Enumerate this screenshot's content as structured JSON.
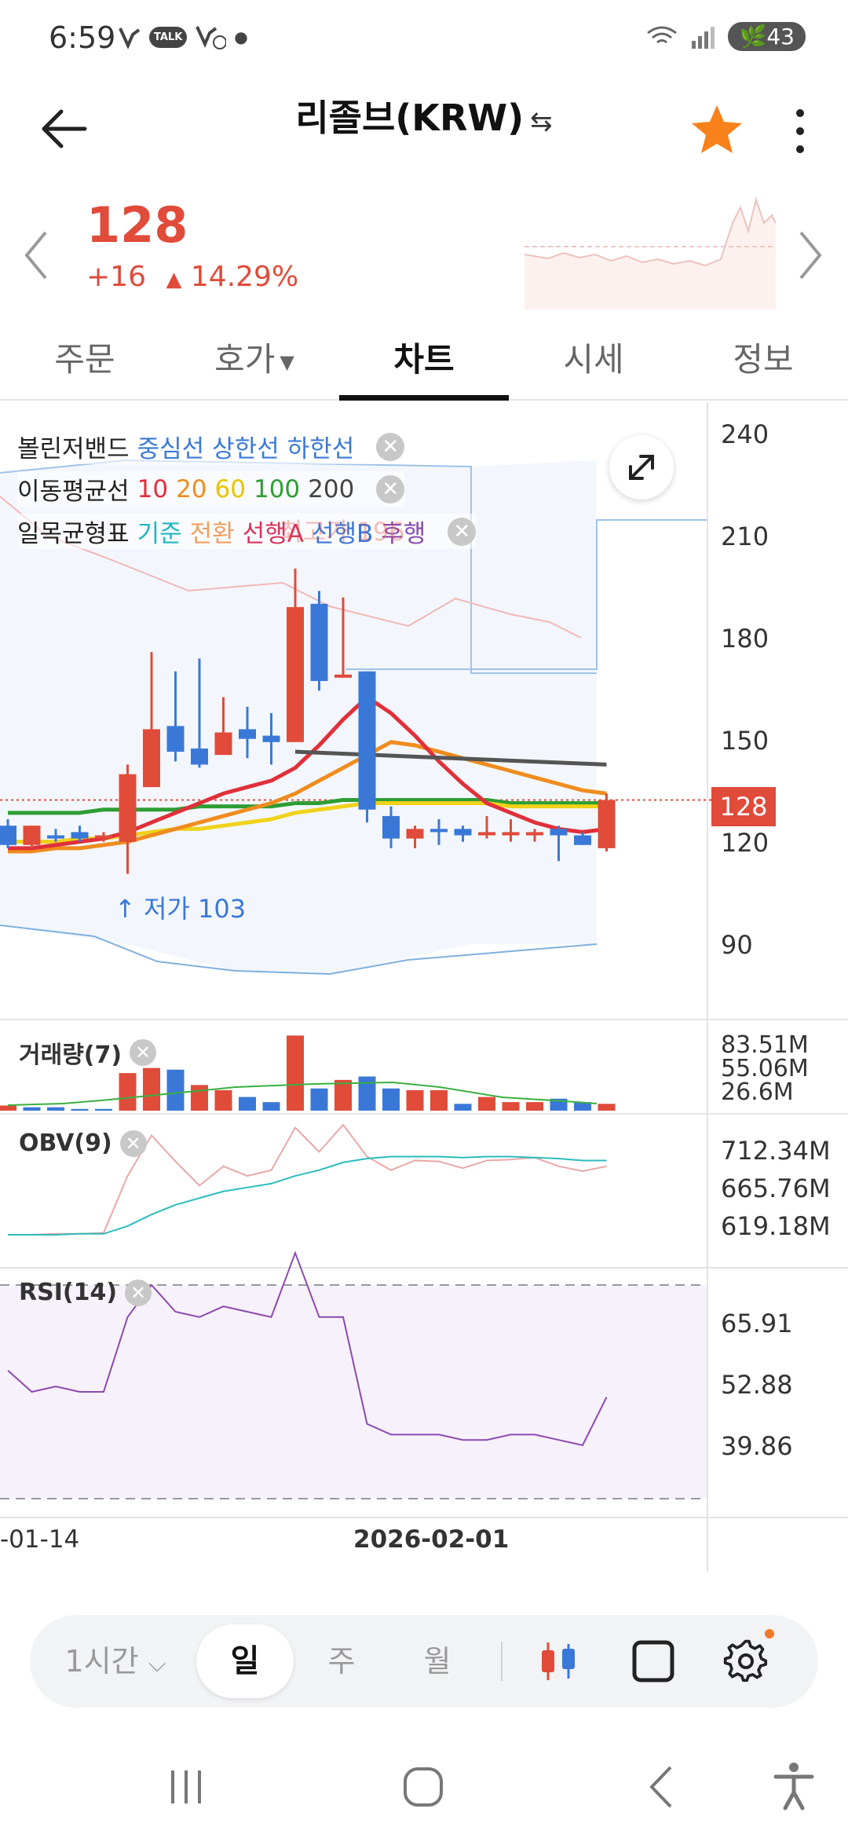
{
  "status": {
    "time": "6:59",
    "battery": "43",
    "talk": "TALK"
  },
  "header": {
    "title": "리졸브(KRW)",
    "swap_icon": "⇆",
    "star_color": "#f7821b"
  },
  "price": {
    "current": "128",
    "change": "+16",
    "change_arrow": "▲",
    "change_percent": "14.29%",
    "color": "#e04b3a"
  },
  "tabs": [
    {
      "label": "주문"
    },
    {
      "label": "호가",
      "caret": "▼"
    },
    {
      "label": "차트",
      "active": true
    },
    {
      "label": "시세"
    },
    {
      "label": "정보"
    }
  ],
  "chart": {
    "legend_bollinger": {
      "name": "볼린저밴드",
      "mid": "중심선",
      "upper": "상한선",
      "lower": "하한선"
    },
    "legend_ma": {
      "name": "이동평균선",
      "p10": "10",
      "p20": "20",
      "p60": "60",
      "p100": "100",
      "p200": "200"
    },
    "legend_ichimoku": {
      "name": "일목균형표",
      "base": "기준",
      "conv": "전환",
      "spanA": "선행A",
      "spanB": "선행B",
      "lag": "후행"
    },
    "high_watermark": "최고가 196",
    "low_label": "저가 103",
    "price_tag": "128",
    "close_glyph": "✕",
    "y_axis": [
      "240",
      "210",
      "180",
      "150",
      "120",
      "90"
    ],
    "volume": {
      "title": "거래량(7)",
      "axis": [
        "83.51M",
        "55.06M",
        "26.6M"
      ]
    },
    "obv": {
      "title": "OBV(9)",
      "axis": [
        "712.34M",
        "665.76M",
        "619.18M"
      ]
    },
    "rsi": {
      "title": "RSI(14)",
      "axis": [
        "65.91",
        "52.88",
        "39.86"
      ]
    },
    "dates": [
      "-01-14",
      "2026-02-01"
    ]
  },
  "chart_data": {
    "type": "candlestick",
    "ylim": [
      80,
      245
    ],
    "candles": [
      {
        "o": 120,
        "h": 122,
        "l": 113,
        "c": 114
      },
      {
        "o": 114,
        "h": 120,
        "l": 113,
        "c": 120
      },
      {
        "o": 117,
        "h": 119,
        "l": 115,
        "c": 116
      },
      {
        "o": 118,
        "h": 120,
        "l": 115,
        "c": 116
      },
      {
        "o": 116,
        "h": 118,
        "l": 115,
        "c": 117
      },
      {
        "o": 115,
        "h": 139,
        "l": 105,
        "c": 136
      },
      {
        "o": 132,
        "h": 174,
        "l": 132,
        "c": 150
      },
      {
        "o": 151,
        "h": 168,
        "l": 140,
        "c": 143
      },
      {
        "o": 144,
        "h": 172,
        "l": 138,
        "c": 139
      },
      {
        "o": 142,
        "h": 160,
        "l": 142,
        "c": 149
      },
      {
        "o": 150,
        "h": 157,
        "l": 141,
        "c": 147
      },
      {
        "o": 148,
        "h": 155,
        "l": 139,
        "c": 146
      },
      {
        "o": 146,
        "h": 200,
        "l": 146,
        "c": 188
      },
      {
        "o": 189,
        "h": 193,
        "l": 162,
        "c": 165
      },
      {
        "o": 167,
        "h": 191,
        "l": 166,
        "c": 167
      },
      {
        "o": 168,
        "h": 168,
        "l": 121,
        "c": 125
      },
      {
        "o": 123,
        "h": 126,
        "l": 113,
        "c": 116
      },
      {
        "o": 116,
        "h": 120,
        "l": 113,
        "c": 119
      },
      {
        "o": 119,
        "h": 122,
        "l": 114,
        "c": 118
      },
      {
        "o": 119,
        "h": 120,
        "l": 115,
        "c": 117
      },
      {
        "o": 117,
        "h": 123,
        "l": 116,
        "c": 118
      },
      {
        "o": 117,
        "h": 122,
        "l": 115,
        "c": 118
      },
      {
        "o": 117,
        "h": 119,
        "l": 115,
        "c": 118
      },
      {
        "o": 119,
        "h": 120,
        "l": 109,
        "c": 117
      },
      {
        "o": 117,
        "h": 118,
        "l": 114,
        "c": 114
      },
      {
        "o": 113,
        "h": 130,
        "l": 112,
        "c": 128
      }
    ],
    "ma10": [
      113,
      113,
      114,
      115,
      116,
      118,
      121,
      124,
      127,
      130,
      132,
      134,
      138,
      145,
      153,
      160,
      155,
      148,
      140,
      133,
      127,
      124,
      121,
      119,
      118,
      119
    ],
    "ma20": [
      112,
      112,
      113,
      113,
      114,
      115,
      117,
      119,
      121,
      123,
      125,
      127,
      130,
      134,
      138,
      142,
      146,
      145,
      143,
      141,
      139,
      137,
      135,
      133,
      131,
      130
    ],
    "ma60": [
      115,
      115,
      115,
      116,
      116,
      117,
      118,
      119,
      119,
      120,
      121,
      122,
      124,
      125,
      126,
      127,
      127,
      127,
      127,
      127,
      127,
      126,
      126,
      126,
      126,
      126
    ],
    "ma100": [
      124,
      124,
      124,
      124,
      125,
      125,
      125,
      125,
      126,
      126,
      126,
      126,
      127,
      127,
      128,
      128,
      128,
      128,
      128,
      128,
      128,
      127,
      127,
      127,
      127,
      127
    ],
    "ma200_x": [
      12,
      25
    ],
    "ma200_y": [
      143,
      139
    ],
    "volume": [
      3,
      2,
      2,
      1,
      1,
      22,
      25,
      24,
      15,
      12,
      8,
      5,
      44,
      13,
      18,
      20,
      13,
      12,
      12,
      4,
      8,
      5,
      5,
      7,
      5,
      4
    ],
    "volume_up": [
      true,
      false,
      false,
      false,
      false,
      true,
      true,
      false,
      true,
      true,
      false,
      false,
      true,
      false,
      true,
      false,
      false,
      true,
      true,
      false,
      true,
      true,
      true,
      false,
      false,
      true
    ],
    "obv": [
      619,
      619,
      620,
      620,
      621,
      680,
      722,
      695,
      670,
      690,
      680,
      686,
      730,
      705,
      733,
      700,
      686,
      696,
      695,
      688,
      696,
      697,
      699,
      690,
      685,
      690
    ],
    "obv_sig": [
      619,
      619,
      619,
      620,
      620,
      628,
      640,
      650,
      657,
      664,
      668,
      672,
      680,
      686,
      694,
      698,
      700,
      700,
      700,
      699,
      700,
      700,
      699,
      698,
      696,
      696
    ],
    "rsi": [
      54,
      50,
      51,
      50,
      50,
      64,
      70,
      65,
      64,
      66,
      65,
      64,
      76,
      64,
      64,
      44,
      42,
      42,
      42,
      41,
      41,
      42,
      42,
      41,
      40,
      49
    ],
    "rsi_levels": [
      70,
      30
    ]
  },
  "toolbar": {
    "interval": "1시간",
    "interval_caret": "⌵",
    "day": "일",
    "week": "주",
    "month": "월"
  }
}
